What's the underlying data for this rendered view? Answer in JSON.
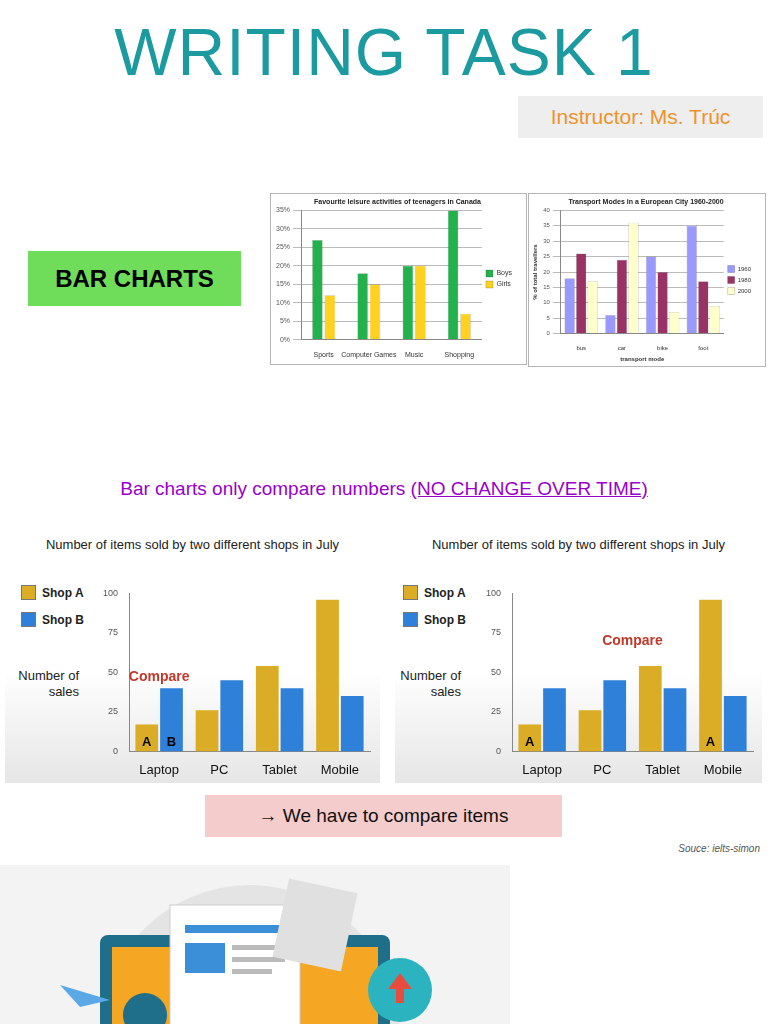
{
  "header": {
    "title": "WRITING TASK 1",
    "instructor": "Instructor: Ms. Trúc"
  },
  "section_label": "BAR CHARTS",
  "chart_data": [
    {
      "type": "bar",
      "title": "Favourite leisure activities of teenagers in Canada",
      "categories": [
        "Sports",
        "Computer Games",
        "Music",
        "Shopping"
      ],
      "series": [
        {
          "name": "Boys",
          "color": "#22b14c",
          "values": [
            27,
            18,
            20,
            35
          ]
        },
        {
          "name": "Girls",
          "color": "#ffd21f",
          "values": [
            12,
            15,
            20,
            7
          ]
        }
      ],
      "ylim": [
        0,
        35
      ],
      "yticks": [
        {
          "value": 0,
          "label": "0%"
        },
        {
          "value": 5,
          "label": "5%"
        },
        {
          "value": 10,
          "label": "10%"
        },
        {
          "value": 15,
          "label": "15%"
        },
        {
          "value": 20,
          "label": "20%"
        },
        {
          "value": 25,
          "label": "25%"
        },
        {
          "value": 30,
          "label": "30%"
        },
        {
          "value": 35,
          "label": "35%"
        }
      ],
      "grid": true,
      "legend": "right"
    },
    {
      "type": "bar",
      "title": "Transport Modes in a European City 1960-2000",
      "x_label": "transport mode",
      "y_label": "% of total travellers",
      "categories": [
        "bus",
        "car",
        "bike",
        "foot"
      ],
      "series": [
        {
          "name": "1960",
          "color": "#9999ff",
          "values": [
            18,
            6,
            25,
            35
          ]
        },
        {
          "name": "1980",
          "color": "#993366",
          "values": [
            26,
            24,
            20,
            17
          ]
        },
        {
          "name": "2000",
          "color": "#ffffcc",
          "values": [
            17,
            36,
            7,
            9
          ]
        }
      ],
      "ylim": [
        0,
        40
      ],
      "yticks": [
        0,
        5,
        10,
        15,
        20,
        25,
        30,
        35,
        40
      ],
      "grid": true,
      "legend": "right"
    },
    {
      "type": "bar",
      "title": "Number of items sold by two different shops in July",
      "y_label": "Number of sales",
      "categories": [
        "Laptop",
        "PC",
        "Tablet",
        "Mobile"
      ],
      "series": [
        {
          "name": "Shop A",
          "color": "#dbac25",
          "values": [
            17,
            26,
            54,
            96
          ]
        },
        {
          "name": "Shop B",
          "color": "#2f80d8",
          "values": [
            40,
            45,
            40,
            35
          ]
        }
      ],
      "ylim": [
        0,
        100
      ],
      "yticks": [
        0,
        25,
        50,
        75,
        100
      ],
      "grid": false,
      "legend": "upper left",
      "annotations": [
        {
          "text": "Compare",
          "category": "Laptop"
        },
        {
          "text": "A",
          "series": "Shop A",
          "category": "Laptop"
        },
        {
          "text": "B",
          "series": "Shop B",
          "category": "Laptop"
        }
      ]
    },
    {
      "type": "bar",
      "title": "Number of items sold by two different shops in July",
      "y_label": "Number of sales",
      "categories": [
        "Laptop",
        "PC",
        "Tablet",
        "Mobile"
      ],
      "series": [
        {
          "name": "Shop A",
          "color": "#dbac25",
          "values": [
            17,
            26,
            54,
            96
          ]
        },
        {
          "name": "Shop B",
          "color": "#2f80d8",
          "values": [
            40,
            45,
            40,
            35
          ]
        }
      ],
      "ylim": [
        0,
        100
      ],
      "yticks": [
        0,
        25,
        50,
        75,
        100
      ],
      "grid": false,
      "legend": "upper left",
      "annotations": [
        {
          "text": "Compare"
        },
        {
          "text": "A",
          "series": "Shop A",
          "category": "Laptop"
        },
        {
          "text": "A",
          "series": "Shop A",
          "category": "Mobile"
        }
      ]
    }
  ],
  "note": {
    "text": "Bar charts only compare numbers ",
    "emphasis": "(NO CHANGE OVER TIME)"
  },
  "conclusion": "→ We have to compare items",
  "source": "Souce: ielts-simon"
}
